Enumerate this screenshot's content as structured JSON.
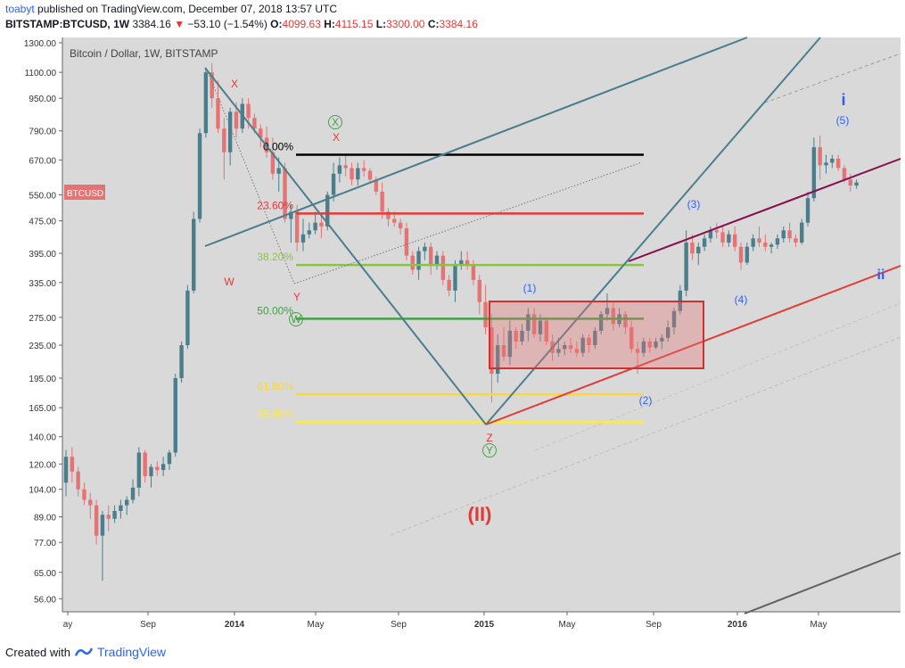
{
  "header": {
    "author": "toabyt",
    "published": "published on TradingView.com, December 07, 2018 13:57 UTC",
    "symbol": "BITSTAMP:BTCUSD, 1W",
    "last": "3384.16",
    "change": "−53.10 (−1.54%)",
    "o_label": "O:",
    "o": "4099.63",
    "h_label": "H:",
    "h": "4115.15",
    "l_label": "L:",
    "l": "3300.00",
    "c_label": "C:",
    "c": "3384.16"
  },
  "footer": {
    "created": "Created with",
    "brand": "TradingView"
  },
  "chart_data": {
    "type": "candlestick",
    "title": "Bitcoin / Dollar, 1W, BITSTAMP",
    "scale": "log",
    "ylim": [
      52,
      1340
    ],
    "y_ticks": [
      "1300.00",
      "1100.00",
      "950.00",
      "790.00",
      "670.00",
      "550.00",
      "475.00",
      "395.00",
      "335.00",
      "275.00",
      "235.00",
      "195.00",
      "165.00",
      "140.00",
      "120.00",
      "104.00",
      "89.00",
      "77.00",
      "65.00",
      "56.00"
    ],
    "x_ticks": [
      "ay",
      "Sep",
      "2014",
      "May",
      "Sep",
      "2015",
      "May",
      "Sep",
      "2016",
      "May"
    ],
    "price_tag": "BTCUSD",
    "fib_levels": [
      {
        "label": "0.00%",
        "value": 690,
        "color": "#000000"
      },
      {
        "label": "23.60%",
        "value": 495,
        "color": "#e53935"
      },
      {
        "label": "38.20%",
        "value": 370,
        "color": "#8bc34a"
      },
      {
        "label": "50.00%",
        "value": 273,
        "color": "#43a047"
      },
      {
        "label": "61.80%",
        "value": 178,
        "color": "#fdd835"
      },
      {
        "label": "65.00%",
        "value": 152,
        "color": "#ffeb3b"
      }
    ],
    "wave_labels": [
      {
        "text": "X",
        "color": "#e53935"
      },
      {
        "text": "W",
        "color": "#e53935"
      },
      {
        "text": "Y",
        "color": "#e53935"
      },
      {
        "text": "X",
        "color": "#e53935"
      },
      {
        "text": "X",
        "color": "#43a047"
      },
      {
        "text": "W",
        "color": "#43a047"
      },
      {
        "text": "Z",
        "color": "#e53935"
      },
      {
        "text": "Y",
        "color": "#43a047"
      },
      {
        "text": "(1)",
        "color": "#2962ff"
      },
      {
        "text": "(2)",
        "color": "#2962ff"
      },
      {
        "text": "(3)",
        "color": "#2962ff"
      },
      {
        "text": "(4)",
        "color": "#2962ff"
      },
      {
        "text": "(5)",
        "color": "#2962ff"
      },
      {
        "text": "i",
        "color": "#2962ff"
      },
      {
        "text": "ii",
        "color": "#2962ff"
      },
      {
        "text": "(II)",
        "color": "#e53935"
      }
    ],
    "candles": [
      [
        108,
        130,
        100,
        125
      ],
      [
        125,
        132,
        108,
        115
      ],
      [
        115,
        118,
        100,
        104
      ],
      [
        104,
        108,
        95,
        98
      ],
      [
        98,
        102,
        88,
        95
      ],
      [
        95,
        98,
        76,
        80
      ],
      [
        80,
        92,
        62,
        90
      ],
      [
        90,
        95,
        82,
        88
      ],
      [
        88,
        95,
        86,
        92
      ],
      [
        92,
        98,
        88,
        95
      ],
      [
        95,
        100,
        90,
        98
      ],
      [
        98,
        110,
        96,
        105
      ],
      [
        105,
        132,
        100,
        128
      ],
      [
        128,
        130,
        108,
        112
      ],
      [
        112,
        120,
        105,
        118
      ],
      [
        118,
        122,
        112,
        116
      ],
      [
        116,
        125,
        112,
        120
      ],
      [
        120,
        130,
        116,
        128
      ],
      [
        128,
        200,
        125,
        195
      ],
      [
        195,
        240,
        190,
        235
      ],
      [
        235,
        330,
        230,
        320
      ],
      [
        320,
        500,
        315,
        480
      ],
      [
        480,
        800,
        470,
        780
      ],
      [
        780,
        1130,
        760,
        1100
      ],
      [
        1100,
        1160,
        900,
        950
      ],
      [
        950,
        1050,
        780,
        800
      ],
      [
        800,
        850,
        600,
        700
      ],
      [
        700,
        900,
        650,
        880
      ],
      [
        880,
        930,
        760,
        800
      ],
      [
        800,
        950,
        780,
        920
      ],
      [
        920,
        950,
        800,
        850
      ],
      [
        850,
        870,
        780,
        800
      ],
      [
        800,
        820,
        720,
        760
      ],
      [
        760,
        810,
        680,
        700
      ],
      [
        700,
        760,
        600,
        620
      ],
      [
        620,
        680,
        560,
        640
      ],
      [
        640,
        660,
        470,
        480
      ],
      [
        480,
        520,
        420,
        500
      ],
      [
        500,
        520,
        400,
        420
      ],
      [
        420,
        480,
        400,
        440
      ],
      [
        440,
        470,
        430,
        450
      ],
      [
        450,
        500,
        440,
        470
      ],
      [
        470,
        490,
        430,
        460
      ],
      [
        460,
        560,
        450,
        550
      ],
      [
        550,
        660,
        530,
        620
      ],
      [
        620,
        680,
        590,
        650
      ],
      [
        650,
        690,
        610,
        640
      ],
      [
        640,
        660,
        580,
        600
      ],
      [
        600,
        660,
        580,
        640
      ],
      [
        640,
        670,
        610,
        630
      ],
      [
        630,
        640,
        590,
        600
      ],
      [
        600,
        610,
        550,
        560
      ],
      [
        560,
        590,
        480,
        500
      ],
      [
        500,
        510,
        460,
        480
      ],
      [
        480,
        500,
        460,
        470
      ],
      [
        470,
        480,
        440,
        455
      ],
      [
        455,
        470,
        380,
        390
      ],
      [
        390,
        400,
        350,
        360
      ],
      [
        360,
        410,
        340,
        400
      ],
      [
        400,
        420,
        380,
        410
      ],
      [
        410,
        420,
        350,
        370
      ],
      [
        370,
        400,
        360,
        390
      ],
      [
        390,
        400,
        330,
        340
      ],
      [
        340,
        350,
        310,
        320
      ],
      [
        320,
        380,
        300,
        370
      ],
      [
        370,
        400,
        360,
        380
      ],
      [
        380,
        400,
        360,
        370
      ],
      [
        370,
        380,
        330,
        340
      ],
      [
        340,
        350,
        280,
        300
      ],
      [
        300,
        330,
        250,
        260
      ],
      [
        260,
        280,
        170,
        200
      ],
      [
        200,
        250,
        190,
        235
      ],
      [
        235,
        260,
        215,
        220
      ],
      [
        220,
        270,
        210,
        255
      ],
      [
        255,
        260,
        230,
        240
      ],
      [
        240,
        265,
        235,
        255
      ],
      [
        255,
        290,
        240,
        280
      ],
      [
        280,
        290,
        245,
        250
      ],
      [
        250,
        280,
        240,
        270
      ],
      [
        270,
        275,
        235,
        240
      ],
      [
        240,
        250,
        215,
        225
      ],
      [
        225,
        245,
        220,
        230
      ],
      [
        230,
        240,
        222,
        235
      ],
      [
        235,
        245,
        225,
        230
      ],
      [
        230,
        240,
        220,
        225
      ],
      [
        225,
        250,
        220,
        245
      ],
      [
        245,
        250,
        225,
        235
      ],
      [
        235,
        260,
        230,
        255
      ],
      [
        255,
        285,
        250,
        280
      ],
      [
        280,
        315,
        270,
        290
      ],
      [
        290,
        300,
        255,
        265
      ],
      [
        265,
        290,
        260,
        280
      ],
      [
        280,
        285,
        250,
        260
      ],
      [
        260,
        270,
        225,
        230
      ],
      [
        230,
        240,
        200,
        225
      ],
      [
        225,
        245,
        220,
        240
      ],
      [
        240,
        245,
        225,
        232
      ],
      [
        232,
        245,
        230,
        240
      ],
      [
        240,
        250,
        230,
        245
      ],
      [
        245,
        270,
        240,
        260
      ],
      [
        260,
        290,
        250,
        285
      ],
      [
        285,
        330,
        280,
        320
      ],
      [
        320,
        450,
        310,
        420
      ],
      [
        420,
        440,
        380,
        395
      ],
      [
        395,
        420,
        370,
        410
      ],
      [
        410,
        440,
        400,
        430
      ],
      [
        430,
        460,
        420,
        450
      ],
      [
        450,
        470,
        430,
        445
      ],
      [
        445,
        460,
        410,
        420
      ],
      [
        420,
        450,
        410,
        440
      ],
      [
        440,
        460,
        400,
        410
      ],
      [
        410,
        420,
        360,
        375
      ],
      [
        375,
        420,
        370,
        410
      ],
      [
        410,
        440,
        400,
        430
      ],
      [
        430,
        460,
        410,
        420
      ],
      [
        420,
        440,
        400,
        410
      ],
      [
        410,
        420,
        395,
        415
      ],
      [
        415,
        440,
        405,
        430
      ],
      [
        430,
        460,
        420,
        450
      ],
      [
        450,
        470,
        420,
        430
      ],
      [
        430,
        440,
        410,
        420
      ],
      [
        420,
        480,
        415,
        470
      ],
      [
        470,
        560,
        460,
        540
      ],
      [
        540,
        760,
        530,
        720
      ],
      [
        720,
        770,
        600,
        650
      ],
      [
        650,
        690,
        620,
        660
      ],
      [
        660,
        690,
        640,
        675
      ],
      [
        675,
        690,
        630,
        640
      ],
      [
        640,
        650,
        590,
        600
      ],
      [
        600,
        620,
        560,
        580
      ],
      [
        580,
        600,
        570,
        590
      ]
    ]
  }
}
